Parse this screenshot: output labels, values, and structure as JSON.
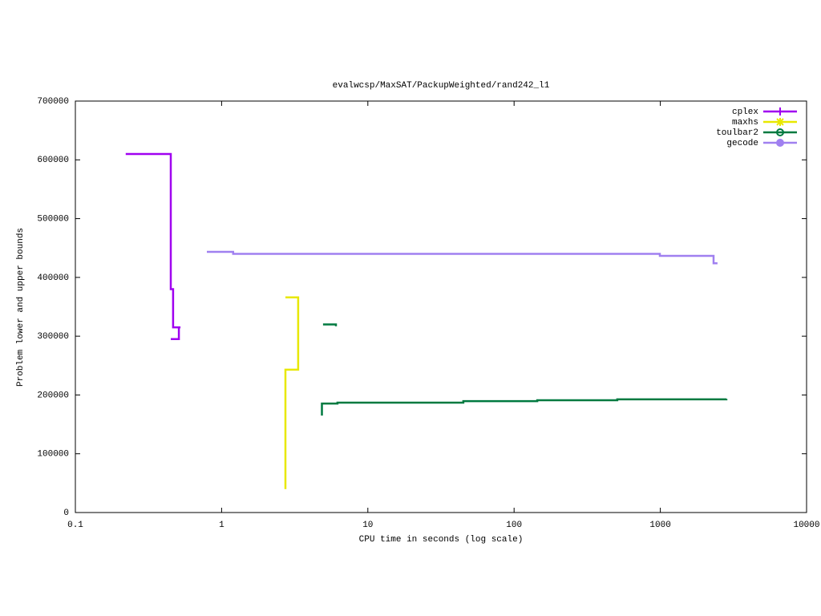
{
  "chart_data": {
    "type": "line",
    "title": "evalwcsp/MaxSAT/PackupWeighted/rand242_l1",
    "xlabel": "CPU time in seconds (log scale)",
    "ylabel": "Problem lower and upper bounds",
    "xscale": "log",
    "xlim": [
      0.1,
      10000
    ],
    "xticks": [
      0.1,
      1,
      10,
      100,
      1000,
      10000
    ],
    "ylim": [
      0,
      700000
    ],
    "yticks": [
      0,
      100000,
      200000,
      300000,
      400000,
      500000,
      600000,
      700000
    ],
    "legend": "upper right",
    "series": [
      {
        "name": "cplex",
        "color": "#a000f0",
        "marker": "plus",
        "x": [
          0.221,
          0.449,
          0.449,
          0.466,
          0.466,
          0.523,
          null,
          0.449,
          0.51,
          0.51
        ],
        "values": [
          610000,
          610000,
          380000,
          380000,
          315000,
          315000,
          null,
          295000,
          295000,
          315000
        ]
      },
      {
        "name": "maxhs",
        "color": "#e8e800",
        "marker": "star",
        "x": [
          2.73,
          2.73,
          3.34,
          3.34,
          null,
          2.73,
          3.34,
          3.34
        ],
        "values": [
          40000,
          243000,
          243000,
          315000,
          null,
          366000,
          366000,
          315000
        ]
      },
      {
        "name": "toulbar2",
        "color": "#007a40",
        "marker": "circle",
        "x": [
          4.94,
          6.05,
          6.05,
          null,
          4.85,
          4.85,
          4.9,
          4.9,
          6.2,
          6.2,
          45,
          45,
          144,
          144,
          508,
          508,
          2830,
          2830
        ],
        "values": [
          320000,
          320000,
          317000,
          null,
          165000,
          185500,
          185500,
          185500,
          185500,
          187000,
          187000,
          189500,
          189500,
          191000,
          191000,
          192500,
          192500,
          193500
        ]
      },
      {
        "name": "gecode",
        "color": "#a080f0",
        "marker": "dot",
        "x": [
          0.793,
          1.2,
          1.2,
          993,
          993,
          2312,
          2312,
          2460
        ],
        "values": [
          443500,
          443500,
          440000,
          440000,
          436600,
          436600,
          424000,
          424000
        ]
      }
    ]
  }
}
